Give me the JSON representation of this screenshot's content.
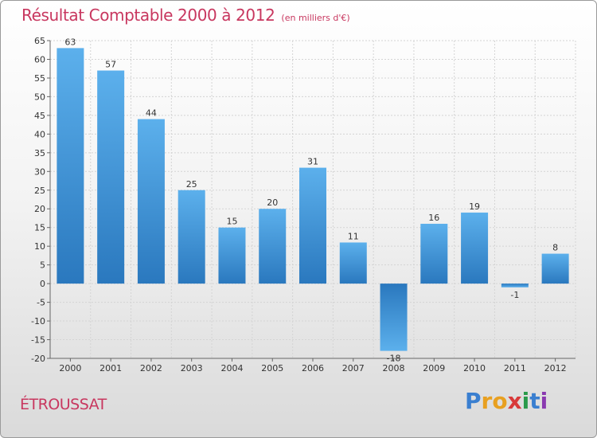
{
  "header": {
    "title": "Résultat Comptable 2000 à 2012",
    "subtitle": "(en milliers d'€)"
  },
  "commune": "ÉTROUSSAT",
  "logo": {
    "text": "Proxiti",
    "letters": [
      {
        "ch": "P",
        "color": "#3a7fd0"
      },
      {
        "ch": "r",
        "color": "#e8a020"
      },
      {
        "ch": "o",
        "color": "#e8a020"
      },
      {
        "ch": "x",
        "color": "#d83a3a"
      },
      {
        "ch": "i",
        "color": "#2a9a4a"
      },
      {
        "ch": "t",
        "color": "#3a7fd0"
      },
      {
        "ch": "i",
        "color": "#8a3ab0"
      }
    ]
  },
  "colors": {
    "bar_light": "#5aaeea",
    "bar_dark": "#2a78be",
    "title": "#c8375f",
    "grid": "#d4d4d4"
  },
  "chart_data": {
    "type": "bar",
    "title": "Résultat Comptable 2000 à 2012",
    "ylabel": "(en milliers d'€)",
    "xlabel": "",
    "categories": [
      "2000",
      "2001",
      "2002",
      "2003",
      "2004",
      "2005",
      "2006",
      "2007",
      "2008",
      "2009",
      "2010",
      "2011",
      "2012"
    ],
    "values": [
      63,
      57,
      44,
      25,
      15,
      20,
      31,
      11,
      -18,
      16,
      19,
      -1,
      8
    ],
    "value_labels": [
      "63",
      "57",
      "44",
      "25",
      "15",
      "20",
      "31",
      "11",
      "-18",
      "16",
      "19",
      "-1",
      "8"
    ],
    "ylim": [
      -20,
      65
    ],
    "yticks": [
      -20,
      -15,
      -10,
      -5,
      0,
      5,
      10,
      15,
      20,
      25,
      30,
      35,
      40,
      45,
      50,
      55,
      60,
      65
    ],
    "grid": true
  }
}
